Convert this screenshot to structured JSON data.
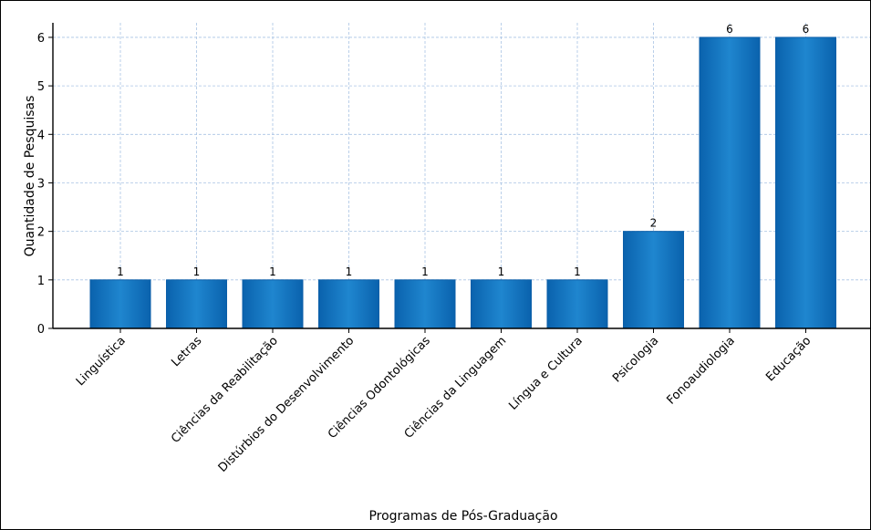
{
  "chart_data": {
    "type": "bar",
    "title": "",
    "xlabel": "Programas de Pós-Graduação",
    "ylabel": "Quantidade de Pesquisas",
    "categories": [
      "Linguística",
      "Letras",
      "Ciências da Reabilitação",
      "Distúrbios do Desenvolvimento",
      "Ciências Odontológicas",
      "Ciências da Linguagem",
      "Língua e Cultura",
      "Psicologia",
      "Fonoaudiologia",
      "Educação"
    ],
    "values": [
      1,
      1,
      1,
      1,
      1,
      1,
      1,
      2,
      6,
      6
    ],
    "ylim": [
      0,
      6.3
    ],
    "yticks": [
      0,
      1,
      2,
      3,
      4,
      5,
      6
    ],
    "grid": true,
    "bar_color": "#1a7bc4",
    "bar_edge_color": "#0b5ea8",
    "grid_color": "#a9c4e4",
    "data_labels": true
  }
}
